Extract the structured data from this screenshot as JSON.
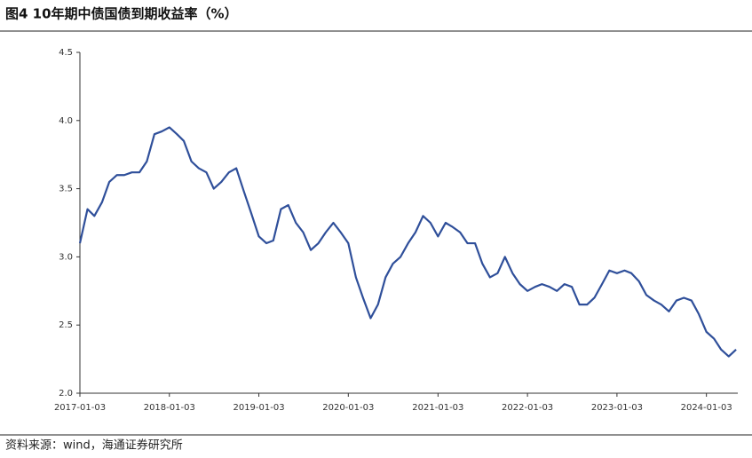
{
  "chart_data": {
    "type": "line",
    "title": "图4  10年期中债国债到期收益率（%）",
    "source": "资料来源：wind，海通证券研究所",
    "x": [
      "2017-01-03",
      "2017-02-03",
      "2017-03-03",
      "2017-04-03",
      "2017-05-03",
      "2017-06-03",
      "2017-07-03",
      "2017-08-03",
      "2017-09-03",
      "2017-10-03",
      "2017-11-03",
      "2017-12-03",
      "2018-01-03",
      "2018-02-03",
      "2018-03-03",
      "2018-04-03",
      "2018-05-03",
      "2018-06-03",
      "2018-07-03",
      "2018-08-03",
      "2018-09-03",
      "2018-10-03",
      "2018-11-03",
      "2018-12-03",
      "2019-01-03",
      "2019-02-03",
      "2019-03-03",
      "2019-04-03",
      "2019-05-03",
      "2019-06-03",
      "2019-07-03",
      "2019-08-03",
      "2019-09-03",
      "2019-10-03",
      "2019-11-03",
      "2019-12-03",
      "2020-01-03",
      "2020-02-03",
      "2020-03-03",
      "2020-04-03",
      "2020-05-03",
      "2020-06-03",
      "2020-07-03",
      "2020-08-03",
      "2020-09-03",
      "2020-10-03",
      "2020-11-03",
      "2020-12-03",
      "2021-01-03",
      "2021-02-03",
      "2021-03-03",
      "2021-04-03",
      "2021-05-03",
      "2021-06-03",
      "2021-07-03",
      "2021-08-03",
      "2021-09-03",
      "2021-10-03",
      "2021-11-03",
      "2021-12-03",
      "2022-01-03",
      "2022-02-03",
      "2022-03-03",
      "2022-04-03",
      "2022-05-03",
      "2022-06-03",
      "2022-07-03",
      "2022-08-03",
      "2022-09-03",
      "2022-10-03",
      "2022-11-03",
      "2022-12-03",
      "2023-01-03",
      "2023-02-03",
      "2023-03-03",
      "2023-04-03",
      "2023-05-03",
      "2023-06-03",
      "2023-07-03",
      "2023-08-03",
      "2023-09-03",
      "2023-10-03",
      "2023-11-03",
      "2023-12-03",
      "2024-01-03",
      "2024-02-03",
      "2024-03-03",
      "2024-04-03",
      "2024-05-03"
    ],
    "series": [
      {
        "name": "10年期中债国债到期收益率",
        "color": "#2f4f9a",
        "values": [
          3.1,
          3.35,
          3.3,
          3.4,
          3.55,
          3.6,
          3.6,
          3.62,
          3.62,
          3.7,
          3.9,
          3.92,
          3.95,
          3.9,
          3.85,
          3.7,
          3.65,
          3.62,
          3.5,
          3.55,
          3.62,
          3.65,
          3.48,
          3.32,
          3.15,
          3.1,
          3.12,
          3.35,
          3.38,
          3.25,
          3.18,
          3.05,
          3.1,
          3.18,
          3.25,
          3.18,
          3.1,
          2.85,
          2.7,
          2.55,
          2.65,
          2.85,
          2.95,
          3.0,
          3.1,
          3.18,
          3.3,
          3.25,
          3.15,
          3.25,
          3.22,
          3.18,
          3.1,
          3.1,
          2.95,
          2.85,
          2.88,
          3.0,
          2.88,
          2.8,
          2.75,
          2.78,
          2.8,
          2.78,
          2.75,
          2.8,
          2.78,
          2.65,
          2.65,
          2.7,
          2.8,
          2.9,
          2.88,
          2.9,
          2.88,
          2.82,
          2.72,
          2.68,
          2.65,
          2.6,
          2.68,
          2.7,
          2.68,
          2.58,
          2.45,
          2.4,
          2.32,
          2.27,
          2.32
        ]
      }
    ],
    "xlim": [
      "2017-01-03",
      "2024-05-10"
    ],
    "xticks": [
      "2017-01-03",
      "2018-01-03",
      "2019-01-03",
      "2020-01-03",
      "2021-01-03",
      "2022-01-03",
      "2023-01-03",
      "2024-01-03"
    ],
    "ylim": [
      2.0,
      4.5
    ],
    "yticks": [
      {
        "value": 2,
        "label": "2.0"
      },
      2.5,
      {
        "value": 3,
        "label": "3.0"
      },
      3.5,
      {
        "value": 4,
        "label": "4.0"
      },
      4.5
    ]
  }
}
